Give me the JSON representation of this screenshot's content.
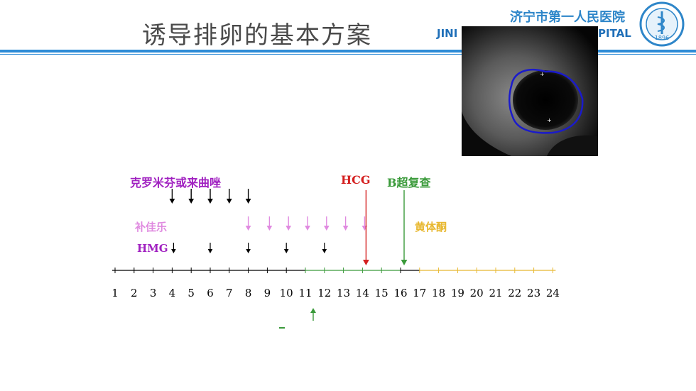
{
  "slide": {
    "title": "诱导排卵的基本方案",
    "hospital_cn": "济宁市第一人民医院",
    "hospital_en_left": "JINI",
    "hospital_en_right": "PITAL",
    "logo_text": "1896"
  },
  "labels": {
    "clomiphene": "克罗米芬或来曲唑",
    "hcg": "HCG",
    "ultrasound_recheck": "B超复查",
    "estrogen": "补佳乐",
    "progesterone": "黄体酮",
    "hmg": "HMG"
  },
  "timeline": {
    "days": [
      "1",
      "2",
      "3",
      "4",
      "5",
      "6",
      "7",
      "8",
      "9",
      "10",
      "11",
      "12",
      "13",
      "14",
      "15",
      "16",
      "17",
      "18",
      "19",
      "20",
      "21",
      "22",
      "23",
      "24"
    ]
  },
  "colors": {
    "blue": "#2e8bd6",
    "purple": "#a020c0",
    "pink": "#e08ae0",
    "red": "#d42020",
    "green": "#3a9a3a",
    "gold": "#e8b830",
    "black": "#000000"
  }
}
